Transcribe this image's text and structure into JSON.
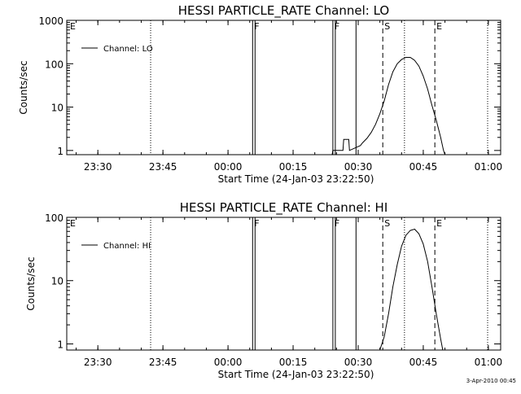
{
  "footer_timestamp": "3-Apr-2010 00:45",
  "chart_data": [
    {
      "type": "line",
      "title": "HESSI PARTICLE_RATE Channel: LO",
      "xlabel": "Start Time (24-Jan-03 23:22:50)",
      "ylabel": "Counts/sec",
      "yscale": "log",
      "ylim": [
        0.8,
        1000
      ],
      "xlim": [
        "23:22:50",
        "01:02:50"
      ],
      "x_ticks": [
        "23:30",
        "23:45",
        "00:00",
        "00:15",
        "00:30",
        "00:45",
        "01:00"
      ],
      "y_ticks": [
        "1",
        "10",
        "100",
        "1000"
      ],
      "grid": false,
      "legend": "top-left",
      "series": [
        {
          "name": "Channel: LO",
          "x": [
            "00:21:00",
            "00:24:00",
            "00:24:10",
            "00:26:30",
            "00:26:40",
            "00:27:50",
            "00:28:00",
            "00:30:30",
            "00:31:00",
            "00:32:00",
            "00:33:00",
            "00:34:00",
            "00:35:00",
            "00:36:00",
            "00:37:00",
            "00:38:00",
            "00:39:00",
            "00:40:00",
            "00:41:00",
            "00:42:00",
            "00:43:00",
            "00:44:00",
            "00:45:00",
            "00:46:00",
            "00:47:00",
            "00:48:00",
            "00:49:00",
            "00:49:40",
            "00:50:00"
          ],
          "values": [
            0.8,
            0.8,
            1,
            1,
            1.8,
            1.8,
            1,
            1.3,
            1.5,
            1.9,
            2.6,
            4,
            7,
            14,
            33,
            65,
            100,
            125,
            140,
            140,
            120,
            88,
            52,
            26,
            11,
            5,
            2,
            1,
            0.8
          ]
        }
      ],
      "markers": [
        {
          "label": "F",
          "x": "00:05:40",
          "style": "solid"
        },
        {
          "label": "F",
          "x": "00:24:10",
          "style": "solid"
        },
        {
          "label": "",
          "x": "00:29:30",
          "style": "solid"
        },
        {
          "label": "S",
          "x": "00:35:40",
          "style": "dashed"
        },
        {
          "label": "E",
          "x": "00:47:40",
          "style": "dashed"
        },
        {
          "label": "",
          "x": "23:42:10",
          "style": "dotted"
        },
        {
          "label": "",
          "x": "00:40:40",
          "style": "dotted"
        },
        {
          "label": "",
          "x": "00:59:50",
          "style": "dotted"
        },
        {
          "label": "E",
          "x": "23:22:50",
          "style": "dotted"
        }
      ]
    },
    {
      "type": "line",
      "title": "HESSI PARTICLE_RATE Channel: HI",
      "xlabel": "Start Time (24-Jan-03 23:22:50)",
      "ylabel": "Counts/sec",
      "yscale": "log",
      "ylim": [
        0.8,
        100
      ],
      "xlim": [
        "23:22:50",
        "01:02:50"
      ],
      "x_ticks": [
        "23:30",
        "23:45",
        "00:00",
        "00:15",
        "00:30",
        "00:45",
        "01:00"
      ],
      "y_ticks": [
        "1",
        "10",
        "100"
      ],
      "grid": false,
      "legend": "top-left",
      "series": [
        {
          "name": "Channel: HI",
          "x": [
            "00:35:00",
            "00:36:00",
            "00:37:00",
            "00:38:00",
            "00:39:00",
            "00:40:00",
            "00:41:00",
            "00:42:00",
            "00:43:00",
            "00:44:00",
            "00:45:00",
            "00:46:00",
            "00:47:00",
            "00:48:00",
            "00:49:00",
            "00:49:30"
          ],
          "values": [
            0.8,
            1.3,
            3,
            8,
            18,
            35,
            52,
            62,
            65,
            55,
            38,
            20,
            8,
            3,
            1.2,
            0.8
          ]
        }
      ],
      "markers": [
        {
          "label": "F",
          "x": "00:05:40",
          "style": "solid"
        },
        {
          "label": "F",
          "x": "00:24:10",
          "style": "solid"
        },
        {
          "label": "",
          "x": "00:29:30",
          "style": "solid"
        },
        {
          "label": "S",
          "x": "00:35:40",
          "style": "dashed"
        },
        {
          "label": "E",
          "x": "00:47:40",
          "style": "dashed"
        },
        {
          "label": "",
          "x": "23:42:10",
          "style": "dotted"
        },
        {
          "label": "",
          "x": "00:40:40",
          "style": "dotted"
        },
        {
          "label": "",
          "x": "00:59:50",
          "style": "dotted"
        },
        {
          "label": "E",
          "x": "23:22:50",
          "style": "dotted"
        }
      ]
    }
  ]
}
